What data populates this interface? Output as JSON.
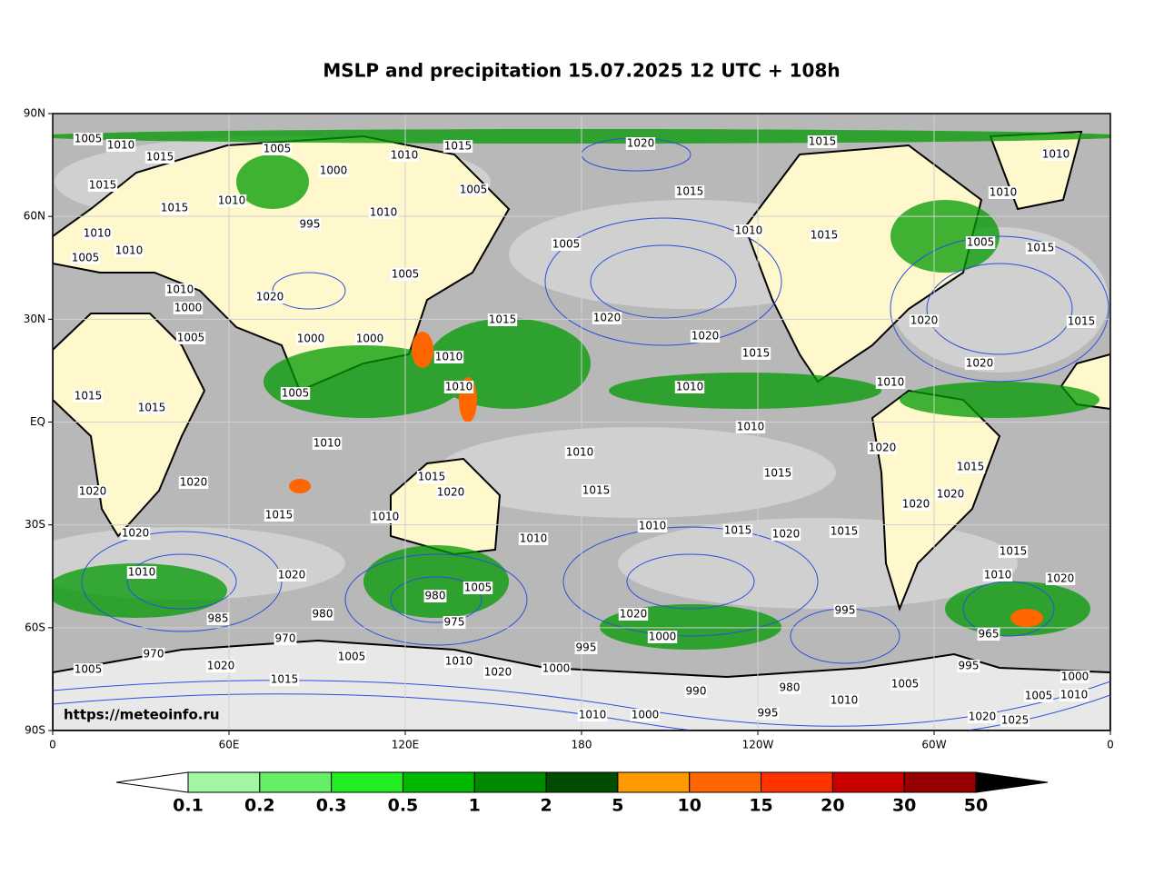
{
  "title": "MSLP and precipitation 15.07.2025 12 UTC + 108h",
  "watermark": "https://meteoinfo.ru",
  "map": {
    "lat_ticks": [
      "90N",
      "60N",
      "30N",
      "EQ",
      "30S",
      "60S",
      "90S"
    ],
    "lon_ticks": [
      "0",
      "60E",
      "120E",
      "180",
      "120W",
      "60W",
      "0"
    ]
  },
  "isobar_labels": [
    1005,
    1010,
    1015,
    1005,
    1000,
    1010,
    1015,
    1020,
    1015,
    1010,
    1015,
    1010,
    1015,
    995,
    1010,
    1005,
    1015,
    1010,
    1010,
    1010,
    1005,
    1010,
    1015,
    1005,
    1015,
    1005,
    1010,
    1000,
    1020,
    1005,
    1015,
    1020,
    1020,
    1015,
    1005,
    1000,
    1000,
    1010,
    1020,
    1015,
    1020,
    1015,
    1015,
    1005,
    1010,
    1010,
    1010,
    1010,
    1020,
    1010,
    1010,
    1015,
    1015,
    1015,
    1020,
    1020,
    1020,
    1015,
    1020,
    1020,
    1015,
    1010,
    1020,
    1010,
    1010,
    1015,
    1020,
    1015,
    1015,
    1010,
    1020,
    1005,
    1010,
    1020,
    985,
    970,
    980,
    980,
    975,
    1020,
    1000,
    995,
    995,
    965,
    970,
    1005,
    1010,
    1005,
    1020,
    1015,
    1020,
    1000,
    990,
    980,
    1010,
    995,
    1005,
    1000,
    1005,
    1010,
    1010,
    1000,
    995,
    1020,
    1025
  ],
  "colorbar": {
    "labels": [
      0.1,
      0.2,
      0.3,
      0.5,
      1,
      2,
      5,
      10,
      15,
      20,
      30,
      50
    ],
    "colors": [
      "#a4f5a4",
      "#66ee66",
      "#22ee22",
      "#00b800",
      "#008a00",
      "#004d00",
      "#ff9900",
      "#ff6600",
      "#ff3300",
      "#c80000",
      "#960000"
    ],
    "under_color": "#ffffff",
    "over_color": "#000000"
  }
}
